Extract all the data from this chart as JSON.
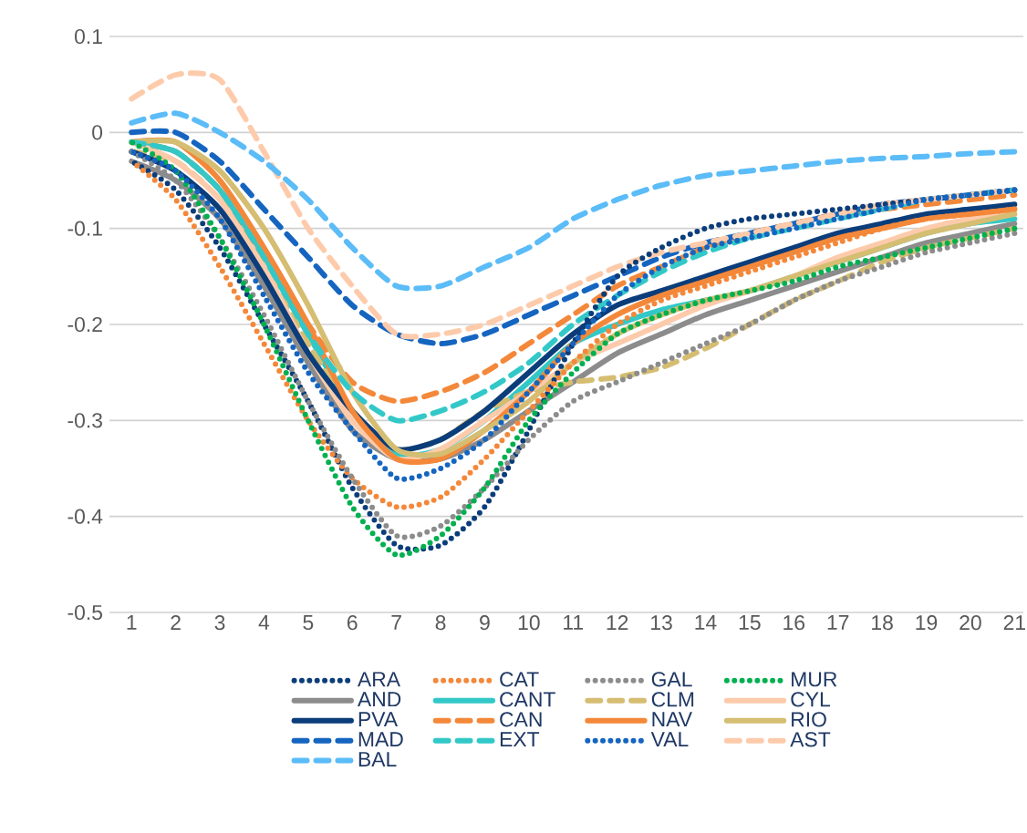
{
  "chart_data": {
    "type": "line",
    "categories": [
      "1",
      "2",
      "3",
      "4",
      "5",
      "6",
      "7",
      "8",
      "9",
      "10",
      "11",
      "12",
      "13",
      "14",
      "15",
      "16",
      "17",
      "18",
      "19",
      "20",
      "21"
    ],
    "ylim": [
      -0.5,
      0.1
    ],
    "yticks": [
      -0.5,
      -0.4,
      -0.3,
      -0.2,
      -0.1,
      0,
      0.1
    ],
    "grid": "y",
    "legend": "bottom",
    "series": [
      {
        "name": "ARA",
        "color": "#0b3d7a",
        "line_style": "dotted",
        "values": [
          -0.03,
          -0.06,
          -0.12,
          -0.2,
          -0.28,
          -0.37,
          -0.43,
          -0.43,
          -0.39,
          -0.31,
          -0.22,
          -0.15,
          -0.12,
          -0.1,
          -0.09,
          -0.085,
          -0.08,
          -0.075,
          -0.07,
          -0.065,
          -0.06
        ]
      },
      {
        "name": "CAT",
        "color": "#f4883a",
        "line_style": "dotted",
        "values": [
          -0.03,
          -0.07,
          -0.14,
          -0.22,
          -0.3,
          -0.36,
          -0.39,
          -0.38,
          -0.34,
          -0.29,
          -0.24,
          -0.2,
          -0.175,
          -0.16,
          -0.145,
          -0.13,
          -0.115,
          -0.1,
          -0.09,
          -0.085,
          -0.08
        ]
      },
      {
        "name": "GAL",
        "color": "#8c8c8c",
        "line_style": "dotted",
        "values": [
          -0.02,
          -0.05,
          -0.11,
          -0.19,
          -0.28,
          -0.36,
          -0.42,
          -0.41,
          -0.37,
          -0.32,
          -0.28,
          -0.26,
          -0.24,
          -0.22,
          -0.2,
          -0.175,
          -0.155,
          -0.14,
          -0.125,
          -0.115,
          -0.105
        ]
      },
      {
        "name": "MUR",
        "color": "#00b050",
        "line_style": "dotted",
        "values": [
          -0.01,
          -0.04,
          -0.11,
          -0.2,
          -0.3,
          -0.39,
          -0.44,
          -0.42,
          -0.37,
          -0.3,
          -0.25,
          -0.21,
          -0.19,
          -0.175,
          -0.165,
          -0.155,
          -0.14,
          -0.13,
          -0.12,
          -0.11,
          -0.1
        ]
      },
      {
        "name": "AND",
        "color": "#8c8c8c",
        "line_style": "solid",
        "values": [
          -0.03,
          -0.05,
          -0.09,
          -0.16,
          -0.24,
          -0.31,
          -0.34,
          -0.34,
          -0.32,
          -0.29,
          -0.26,
          -0.23,
          -0.21,
          -0.19,
          -0.175,
          -0.16,
          -0.145,
          -0.13,
          -0.115,
          -0.105,
          -0.095
        ]
      },
      {
        "name": "CANT",
        "color": "#33c8c8",
        "line_style": "solid",
        "values": [
          -0.01,
          -0.02,
          -0.06,
          -0.13,
          -0.21,
          -0.29,
          -0.335,
          -0.33,
          -0.3,
          -0.26,
          -0.22,
          -0.2,
          -0.185,
          -0.175,
          -0.165,
          -0.15,
          -0.135,
          -0.12,
          -0.105,
          -0.095,
          -0.09
        ]
      },
      {
        "name": "CLM",
        "color": "#d5bd72",
        "line_style": "dashed",
        "values": [
          -0.02,
          -0.03,
          -0.07,
          -0.14,
          -0.22,
          -0.29,
          -0.33,
          -0.32,
          -0.29,
          -0.27,
          -0.26,
          -0.255,
          -0.245,
          -0.225,
          -0.2,
          -0.175,
          -0.155,
          -0.135,
          -0.12,
          -0.11,
          -0.1
        ]
      },
      {
        "name": "CYL",
        "color": "#fdcbab",
        "line_style": "solid",
        "values": [
          -0.01,
          -0.03,
          -0.07,
          -0.14,
          -0.23,
          -0.3,
          -0.34,
          -0.33,
          -0.3,
          -0.27,
          -0.24,
          -0.22,
          -0.2,
          -0.18,
          -0.165,
          -0.15,
          -0.13,
          -0.115,
          -0.1,
          -0.09,
          -0.085
        ]
      },
      {
        "name": "PVA",
        "color": "#0b3d7a",
        "line_style": "solid",
        "values": [
          -0.02,
          -0.04,
          -0.08,
          -0.15,
          -0.23,
          -0.29,
          -0.33,
          -0.32,
          -0.29,
          -0.25,
          -0.21,
          -0.18,
          -0.165,
          -0.15,
          -0.135,
          -0.12,
          -0.105,
          -0.095,
          -0.085,
          -0.08,
          -0.075
        ]
      },
      {
        "name": "CAN",
        "color": "#f4883a",
        "line_style": "dashed",
        "values": [
          -0.01,
          -0.02,
          -0.06,
          -0.13,
          -0.2,
          -0.26,
          -0.28,
          -0.27,
          -0.25,
          -0.22,
          -0.19,
          -0.16,
          -0.14,
          -0.12,
          -0.105,
          -0.095,
          -0.085,
          -0.08,
          -0.075,
          -0.07,
          -0.065
        ]
      },
      {
        "name": "NAV",
        "color": "#f4883a",
        "line_style": "solid",
        "values": [
          -0.01,
          -0.01,
          -0.05,
          -0.12,
          -0.2,
          -0.29,
          -0.34,
          -0.34,
          -0.31,
          -0.27,
          -0.22,
          -0.19,
          -0.17,
          -0.155,
          -0.14,
          -0.125,
          -0.11,
          -0.1,
          -0.09,
          -0.085,
          -0.08
        ]
      },
      {
        "name": "RIO",
        "color": "#d5bd72",
        "line_style": "solid",
        "values": [
          -0.01,
          -0.01,
          -0.04,
          -0.1,
          -0.18,
          -0.27,
          -0.33,
          -0.335,
          -0.31,
          -0.28,
          -0.24,
          -0.21,
          -0.19,
          -0.175,
          -0.165,
          -0.15,
          -0.135,
          -0.12,
          -0.105,
          -0.095,
          -0.085
        ]
      },
      {
        "name": "MAD",
        "color": "#1565c0",
        "line_style": "dashed",
        "values": [
          0.0,
          0.0,
          -0.03,
          -0.08,
          -0.13,
          -0.18,
          -0.21,
          -0.22,
          -0.21,
          -0.19,
          -0.17,
          -0.15,
          -0.13,
          -0.115,
          -0.105,
          -0.095,
          -0.085,
          -0.075,
          -0.07,
          -0.065,
          -0.06
        ]
      },
      {
        "name": "EXT",
        "color": "#33c8c8",
        "line_style": "dashed",
        "values": [
          -0.01,
          -0.02,
          -0.06,
          -0.13,
          -0.21,
          -0.27,
          -0.3,
          -0.29,
          -0.27,
          -0.24,
          -0.2,
          -0.17,
          -0.145,
          -0.125,
          -0.11,
          -0.1,
          -0.09,
          -0.08,
          -0.07,
          -0.065,
          -0.06
        ]
      },
      {
        "name": "VAL",
        "color": "#1565c0",
        "line_style": "dotted",
        "values": [
          -0.02,
          -0.04,
          -0.09,
          -0.17,
          -0.25,
          -0.31,
          -0.36,
          -0.35,
          -0.32,
          -0.27,
          -0.22,
          -0.17,
          -0.14,
          -0.12,
          -0.11,
          -0.1,
          -0.09,
          -0.08,
          -0.07,
          -0.065,
          -0.06
        ]
      },
      {
        "name": "AST",
        "color": "#fdcbab",
        "line_style": "dashed",
        "values": [
          0.035,
          0.06,
          0.055,
          -0.02,
          -0.1,
          -0.16,
          -0.21,
          -0.21,
          -0.2,
          -0.18,
          -0.16,
          -0.14,
          -0.125,
          -0.115,
          -0.105,
          -0.095,
          -0.085,
          -0.075,
          -0.07,
          -0.065,
          -0.06
        ]
      },
      {
        "name": "BAL",
        "color": "#5bbcf8",
        "line_style": "dashed",
        "values": [
          0.01,
          0.02,
          0.0,
          -0.03,
          -0.07,
          -0.12,
          -0.16,
          -0.16,
          -0.14,
          -0.12,
          -0.09,
          -0.07,
          -0.055,
          -0.045,
          -0.04,
          -0.035,
          -0.03,
          -0.027,
          -0.025,
          -0.022,
          -0.02
        ]
      }
    ]
  }
}
